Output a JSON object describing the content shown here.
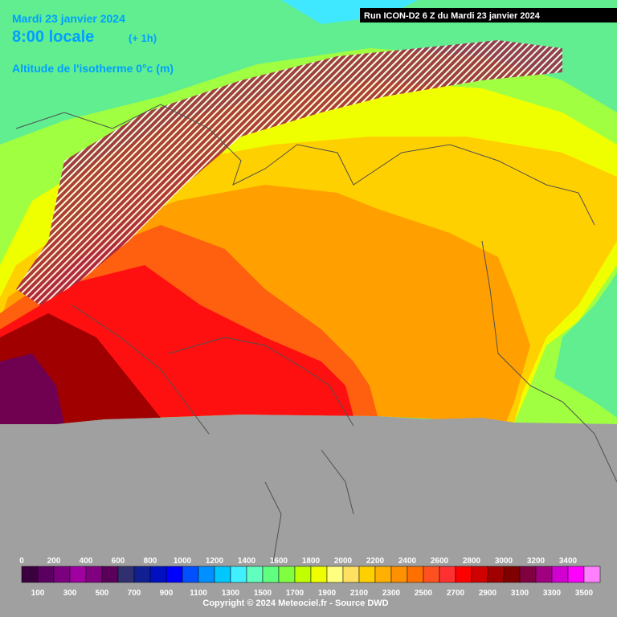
{
  "header": {
    "date": "Mardi 23 janvier 2024",
    "time": "8:00 locale",
    "offset": "(+ 1h)",
    "parameter": "Altitude de l'isotherme 0°c (m)",
    "run": "Run ICON-D2 6 Z du Mardi 23 janvier 2024"
  },
  "legend": {
    "items": [
      {
        "value": 0,
        "color": "#3a0040"
      },
      {
        "value": 100,
        "color": "#5a0060"
      },
      {
        "value": 200,
        "color": "#7a0080"
      },
      {
        "value": 300,
        "color": "#a000a0"
      },
      {
        "value": 400,
        "color": "#800080"
      },
      {
        "value": 500,
        "color": "#5a005a"
      },
      {
        "value": 600,
        "color": "#303070"
      },
      {
        "value": 700,
        "color": "#102090"
      },
      {
        "value": 800,
        "color": "#0010c0"
      },
      {
        "value": 900,
        "color": "#0000ff"
      },
      {
        "value": 1000,
        "color": "#0050ff"
      },
      {
        "value": 1100,
        "color": "#0090ff"
      },
      {
        "value": 1200,
        "color": "#00c8ff"
      },
      {
        "value": 1300,
        "color": "#40f0ff"
      },
      {
        "value": 1400,
        "color": "#60ffc0"
      },
      {
        "value": 1500,
        "color": "#60ff80"
      },
      {
        "value": 1600,
        "color": "#80ff40"
      },
      {
        "value": 1700,
        "color": "#c0ff00"
      },
      {
        "value": 1800,
        "color": "#f0ff00"
      },
      {
        "value": 1900,
        "color": "#ffff80"
      },
      {
        "value": 2000,
        "color": "#ffe060"
      },
      {
        "value": 2100,
        "color": "#ffd000"
      },
      {
        "value": 2200,
        "color": "#ffb000"
      },
      {
        "value": 2300,
        "color": "#ff9000"
      },
      {
        "value": 2400,
        "color": "#ff7000"
      },
      {
        "value": 2500,
        "color": "#ff5020"
      },
      {
        "value": 2600,
        "color": "#ff3030"
      },
      {
        "value": 2700,
        "color": "#ff0000"
      },
      {
        "value": 2800,
        "color": "#d00000"
      },
      {
        "value": 2900,
        "color": "#a00000"
      },
      {
        "value": 3000,
        "color": "#800000"
      },
      {
        "value": 3100,
        "color": "#800040"
      },
      {
        "value": 3200,
        "color": "#a00080"
      },
      {
        "value": 3300,
        "color": "#d000d0"
      },
      {
        "value": 3400,
        "color": "#ff00ff"
      },
      {
        "value": 3500,
        "color": "#ff80ff"
      }
    ]
  },
  "footer": {
    "copyright": "Copyright © 2024 Meteociel.fr - Source DWD"
  }
}
